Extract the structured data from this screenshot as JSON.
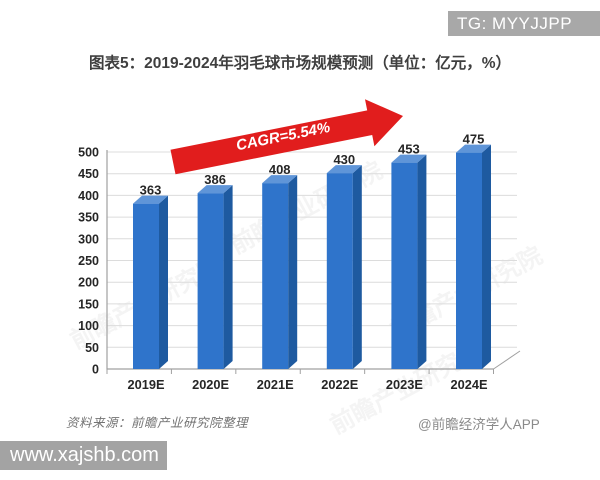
{
  "badge_top_right": "TG: MYYJJPP",
  "title": "图表5：2019-2024年羽毛球市场规模预测（单位：亿元，%）",
  "source_note": "资料来源：前瞻产业研究院整理",
  "credit": "@前瞻经济学人APP",
  "watermark_bottom_left": "www.xajshb.com",
  "faint_watermark": "前瞻产业研究院",
  "chart_data": {
    "type": "bar",
    "style": "3d-column",
    "title": "图表5：2019-2024年羽毛球市场规模预测（单位：亿元，%）",
    "categories": [
      "2019E",
      "2020E",
      "2021E",
      "2022E",
      "2023E",
      "2024E"
    ],
    "values": [
      363,
      386,
      408,
      430,
      453,
      475
    ],
    "annotation": "CAGR=5.54%",
    "xlabel": "",
    "ylabel": "",
    "ylim": [
      0,
      500
    ],
    "ytick_step": 50,
    "yticks": [
      0,
      50,
      100,
      150,
      200,
      250,
      300,
      350,
      400,
      450,
      500
    ],
    "grid": true,
    "legend": false,
    "colors": {
      "bar_front": "#2f74cb",
      "bar_side": "#1e5aa0",
      "bar_top": "#5f95d8",
      "gridline": "#dcdcdc",
      "axis": "#a0a0a0",
      "tick_label": "#262626",
      "value_label": "#262626",
      "arrow": "#e11d1d",
      "arrow_text": "#ffffff"
    }
  }
}
